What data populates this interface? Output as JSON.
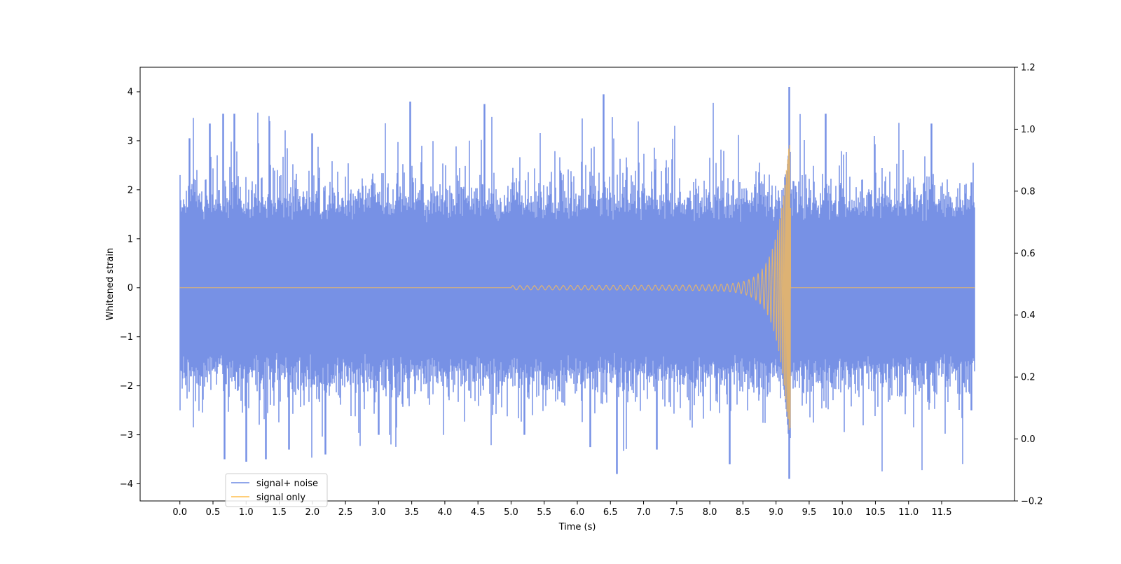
{
  "chart_data": {
    "type": "line",
    "title": "",
    "xlabel": "Time (s)",
    "ylabel": "Whitened strain",
    "ylabel_right": "",
    "xlim": [
      -0.6,
      12.6
    ],
    "ylim": [
      -4.35,
      4.5
    ],
    "ylim_right": [
      -0.2,
      1.2
    ],
    "x_ticks": [
      0.0,
      0.5,
      1.0,
      1.5,
      2.0,
      2.5,
      3.0,
      3.5,
      4.0,
      4.5,
      5.0,
      5.5,
      6.0,
      6.5,
      7.0,
      7.5,
      8.0,
      8.5,
      9.0,
      9.5,
      10.0,
      10.5,
      11.0,
      11.5
    ],
    "x_tick_labels": [
      "0.0",
      "0.5",
      "1.0",
      "1.5",
      "2.0",
      "2.5",
      "3.0",
      "3.5",
      "4.0",
      "4.5",
      "5.0",
      "5.5",
      "6.0",
      "6.5",
      "7.0",
      "7.5",
      "8.0",
      "8.5",
      "9.0",
      "9.5",
      "10.0",
      "10.5",
      "11.0",
      "11.5"
    ],
    "y_ticks": [
      -4,
      -3,
      -2,
      -1,
      0,
      1,
      2,
      3,
      4
    ],
    "y_tick_labels": [
      "−4",
      "−3",
      "−2",
      "−1",
      "0",
      "1",
      "2",
      "3",
      "4"
    ],
    "y_right_ticks": [
      -0.2,
      0.0,
      0.2,
      0.4,
      0.6,
      0.8,
      1.0,
      1.2
    ],
    "y_right_tick_labels": [
      "−0.2",
      "0.0",
      "0.2",
      "0.4",
      "0.6",
      "0.8",
      "1.0",
      "1.2"
    ],
    "grid": false,
    "legend_position": "lower-left",
    "series": [
      {
        "name": "signal+ noise",
        "color": "#6b88e3",
        "x_range": [
          0.0,
          12.0
        ],
        "typical_envelope": [
          -1.7,
          1.7
        ],
        "peaks": [
          {
            "x": 0.0,
            "y": 1.85
          },
          {
            "x": 0.0,
            "y": -2.5
          },
          {
            "x": 0.15,
            "y": 3.05
          },
          {
            "x": 0.45,
            "y": 3.35
          },
          {
            "x": 0.65,
            "y": 3.55
          },
          {
            "x": 0.67,
            "y": -3.5
          },
          {
            "x": 0.82,
            "y": 3.55
          },
          {
            "x": 1.0,
            "y": -3.55
          },
          {
            "x": 1.35,
            "y": 3.4
          },
          {
            "x": 1.3,
            "y": -3.5
          },
          {
            "x": 1.65,
            "y": -3.3
          },
          {
            "x": 2.0,
            "y": 3.15
          },
          {
            "x": 2.2,
            "y": -3.4
          },
          {
            "x": 3.0,
            "y": -3.0
          },
          {
            "x": 3.48,
            "y": 3.8
          },
          {
            "x": 4.6,
            "y": 3.75
          },
          {
            "x": 5.2,
            "y": -3.0
          },
          {
            "x": 6.4,
            "y": 3.95
          },
          {
            "x": 6.2,
            "y": -3.25
          },
          {
            "x": 6.6,
            "y": -3.8
          },
          {
            "x": 7.2,
            "y": -3.3
          },
          {
            "x": 8.3,
            "y": -3.6
          },
          {
            "x": 9.2,
            "y": 4.1
          },
          {
            "x": 9.2,
            "y": -3.9
          },
          {
            "x": 9.75,
            "y": 3.55
          },
          {
            "x": 11.35,
            "y": 3.35
          },
          {
            "x": 11.95,
            "y": 2.15
          },
          {
            "x": 11.95,
            "y": -2.5
          }
        ]
      },
      {
        "name": "signal only",
        "color": "#ffbe4d",
        "axis": "right",
        "x_range": [
          0.0,
          12.0
        ],
        "baseline": 0.0,
        "chirp_start": 5.0,
        "merger_x": 9.2,
        "max_amplitude": 3.1,
        "min_amplitude": -3.4
      }
    ]
  }
}
